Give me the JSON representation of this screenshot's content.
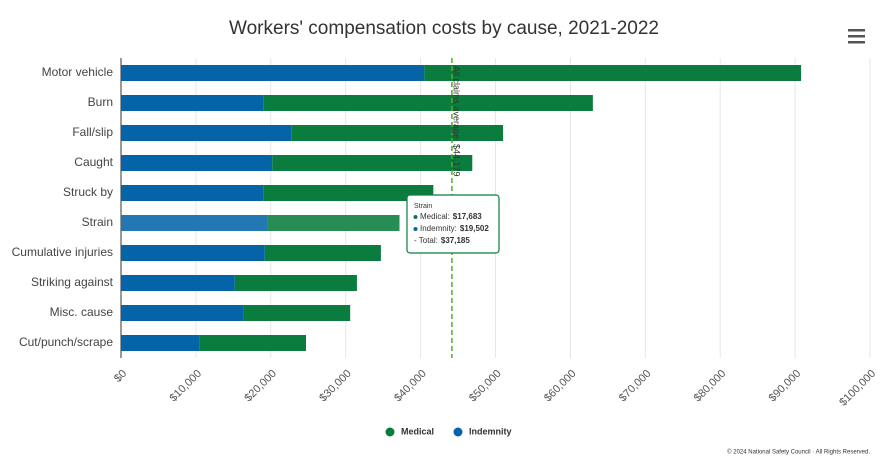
{
  "chart_data": {
    "type": "stacked-bar-horizontal",
    "title": "Workers' compensation costs by cause, 2021-2022",
    "categories": [
      "Motor vehicle",
      "Burn",
      "Fall/slip",
      "Caught",
      "Struck by",
      "Strain",
      "Cumulative injuries",
      "Striking against",
      "Misc. cause",
      "Cut/punch/scrape"
    ],
    "series": [
      {
        "name": "Medical",
        "color": "#0a7d3e",
        "values": [
          50300,
          44000,
          28200,
          26700,
          22700,
          17683,
          15500,
          16300,
          14300,
          14200
        ]
      },
      {
        "name": "Indemnity",
        "color": "#0564a8",
        "values": [
          40500,
          19000,
          22800,
          20200,
          19000,
          19502,
          19200,
          15200,
          16300,
          10500
        ]
      }
    ],
    "xlim": [
      0,
      100000
    ],
    "xticks": [
      {
        "value": 0,
        "label": "$0"
      },
      {
        "value": 10000,
        "label": "$10,000"
      },
      {
        "value": 20000,
        "label": "$20,000"
      },
      {
        "value": 30000,
        "label": "$30,000"
      },
      {
        "value": 40000,
        "label": "$40,000"
      },
      {
        "value": 50000,
        "label": "$50,000"
      },
      {
        "value": 60000,
        "label": "$60,000"
      },
      {
        "value": 70000,
        "label": "$70,000"
      },
      {
        "value": 80000,
        "label": "$80,000"
      },
      {
        "value": 90000,
        "label": "$90,000"
      },
      {
        "value": 100000,
        "label": "$100,000"
      }
    ],
    "grid": true,
    "average": {
      "value": 44179,
      "label": "All claims average: $44,179",
      "color": "#4caf2a"
    },
    "tooltip": {
      "title": "Strain",
      "rows": [
        {
          "label": "Medical:",
          "value": "$17,683"
        },
        {
          "label": "Indemnity:",
          "value": "$19,502"
        },
        {
          "label": "- Total:",
          "value": "$37,185"
        }
      ]
    },
    "legend": "bottom",
    "credits": "© 2024 National Safety Council · All Rights Reserved."
  }
}
